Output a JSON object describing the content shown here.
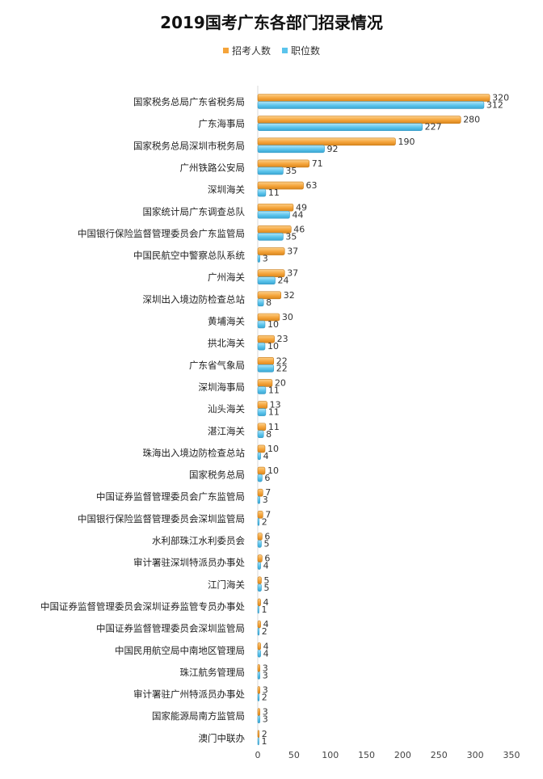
{
  "chart_data": {
    "type": "bar",
    "orientation": "horizontal",
    "title": "2019国考广东各部门招录情况",
    "categories": [
      "国家税务总局广东省税务局",
      "广东海事局",
      "国家税务总局深圳市税务局",
      "广州铁路公安局",
      "深圳海关",
      "国家统计局广东调查总队",
      "中国银行保险监督管理委员会广东监管局",
      "中国民航空中警察总队系统",
      "广州海关",
      "深圳出入境边防检查总站",
      "黄埔海关",
      "拱北海关",
      "广东省气象局",
      "深圳海事局",
      "汕头海关",
      "湛江海关",
      "珠海出入境边防检查总站",
      "国家税务总局",
      "中国证券监督管理委员会广东监管局",
      "中国银行保险监督管理委员会深圳监管局",
      "水利部珠江水利委员会",
      "审计署驻深圳特派员办事处",
      "江门海关",
      "中国证券监督管理委员会深圳证券监管专员办事处",
      "中国证券监督管理委员会深圳监管局",
      "中国民用航空局中南地区管理局",
      "珠江航务管理局",
      "审计署驻广州特派员办事处",
      "国家能源局南方监管局",
      "澳门中联办"
    ],
    "series": [
      {
        "name": "招考人数",
        "color": "#f5a43a",
        "values": [
          320,
          280,
          190,
          71,
          63,
          49,
          46,
          37,
          37,
          32,
          30,
          23,
          22,
          20,
          13,
          11,
          10,
          10,
          7,
          7,
          6,
          6,
          5,
          4,
          4,
          4,
          3,
          3,
          3,
          2
        ]
      },
      {
        "name": "职位数",
        "color": "#5bc4ec",
        "values": [
          312,
          227,
          92,
          35,
          11,
          44,
          35,
          3,
          24,
          8,
          10,
          10,
          22,
          11,
          11,
          8,
          4,
          6,
          3,
          2,
          5,
          4,
          5,
          1,
          2,
          4,
          3,
          2,
          3,
          1
        ]
      }
    ],
    "xlim": [
      0,
      350
    ],
    "xticks": [
      0,
      50,
      100,
      150,
      200,
      250,
      300,
      350
    ],
    "legend_position": "top",
    "grid": false
  }
}
